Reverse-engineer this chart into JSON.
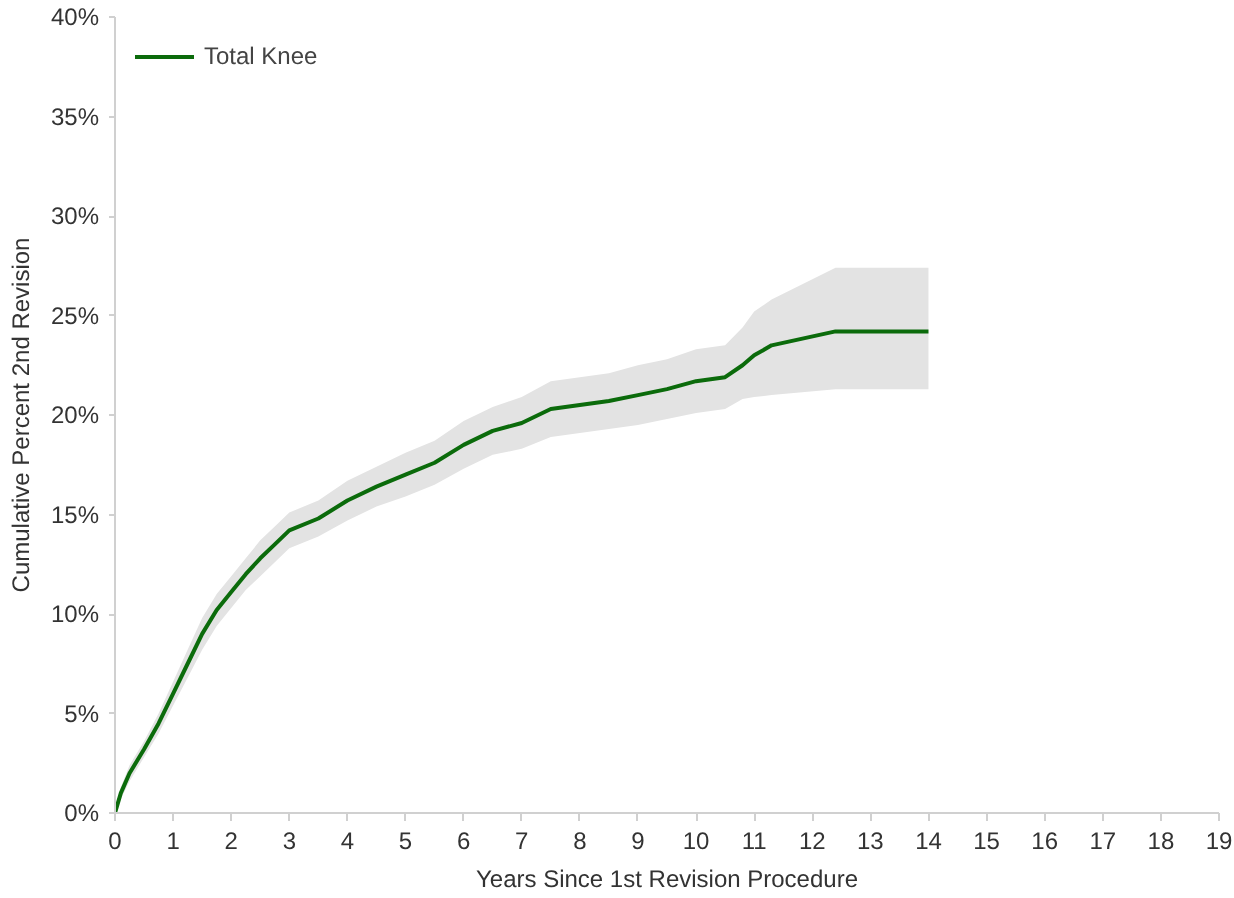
{
  "chart_data": {
    "type": "line",
    "xlabel": "Years Since 1st Revision Procedure",
    "ylabel": "Cumulative Percent 2nd Revision",
    "x": [
      0,
      0.1,
      0.25,
      0.5,
      0.75,
      1,
      1.25,
      1.5,
      1.75,
      2,
      2.25,
      2.5,
      2.75,
      3,
      3.5,
      4,
      4.5,
      5,
      5.5,
      6,
      6.5,
      7,
      7.5,
      8,
      8.5,
      9,
      9.5,
      10,
      10.5,
      10.8,
      11,
      11.3,
      12.4,
      14
    ],
    "series": [
      {
        "name": "Total Knee",
        "color": "#0b6b0b",
        "values": [
          0,
          1,
          2,
          3.2,
          4.5,
          6,
          7.5,
          9,
          10.2,
          11.1,
          12,
          12.8,
          13.5,
          14.2,
          14.8,
          15.7,
          16.4,
          17,
          17.6,
          18.5,
          19.2,
          19.6,
          20.3,
          20.5,
          20.7,
          21,
          21.3,
          21.7,
          21.9,
          22.5,
          23,
          23.5,
          24.2,
          24.2
        ],
        "lower": [
          0,
          0.7,
          1.6,
          2.8,
          4.0,
          5.4,
          6.8,
          8.2,
          9.4,
          10.3,
          11.2,
          11.9,
          12.6,
          13.3,
          13.9,
          14.7,
          15.4,
          15.9,
          16.5,
          17.3,
          18.0,
          18.3,
          18.9,
          19.1,
          19.3,
          19.5,
          19.8,
          20.1,
          20.3,
          20.8,
          20.9,
          21.0,
          21.3,
          21.3
        ],
        "upper": [
          0,
          1.3,
          2.4,
          3.6,
          5.0,
          6.6,
          8.2,
          9.8,
          11.0,
          11.9,
          12.8,
          13.7,
          14.4,
          15.1,
          15.7,
          16.7,
          17.4,
          18.1,
          18.7,
          19.7,
          20.4,
          20.9,
          21.7,
          21.9,
          22.1,
          22.5,
          22.8,
          23.3,
          23.5,
          24.4,
          25.2,
          25.8,
          27.4,
          27.4
        ]
      }
    ],
    "xlim": [
      0,
      19
    ],
    "xticks": [
      0,
      1,
      2,
      3,
      4,
      5,
      6,
      7,
      8,
      9,
      10,
      11,
      12,
      13,
      14,
      15,
      16,
      17,
      18,
      19
    ],
    "ylim": [
      0,
      40
    ],
    "yticks": [
      {
        "value": 0,
        "label": "0%"
      },
      {
        "value": 5,
        "label": "5%"
      },
      {
        "value": 10,
        "label": "10%"
      },
      {
        "value": 15,
        "label": "15%"
      },
      {
        "value": 20,
        "label": "20%"
      },
      {
        "value": 25,
        "label": "25%"
      },
      {
        "value": 30,
        "label": "30%"
      },
      {
        "value": 35,
        "label": "35%"
      },
      {
        "value": 40,
        "label": "40%"
      }
    ],
    "grid": false,
    "legend": "top left"
  }
}
